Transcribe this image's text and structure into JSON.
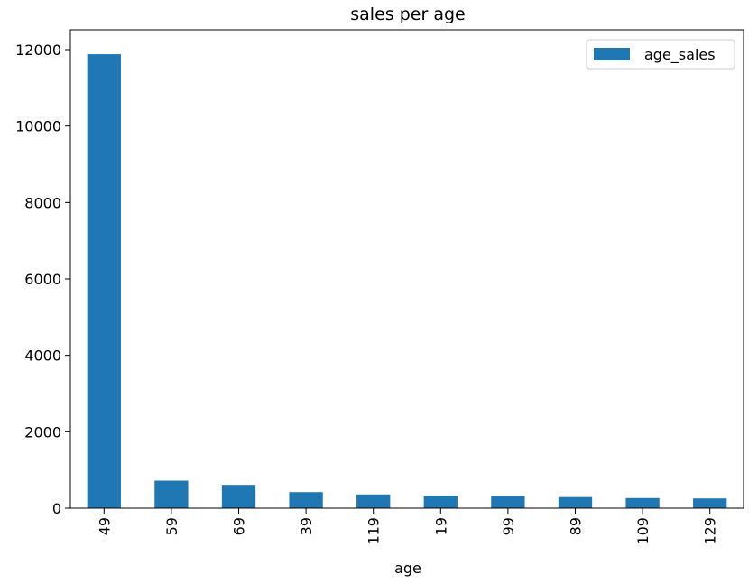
{
  "chart_data": {
    "type": "bar",
    "title": "sales per age",
    "xlabel": "age",
    "ylabel": "",
    "categories": [
      "49",
      "59",
      "69",
      "39",
      "119",
      "19",
      "99",
      "89",
      "109",
      "129"
    ],
    "series": [
      {
        "name": "age_sales",
        "values": [
          11880,
          720,
          610,
          420,
          360,
          330,
          320,
          290,
          265,
          255
        ]
      }
    ],
    "ylim": [
      0,
      12520
    ],
    "yticks": [
      0,
      2000,
      4000,
      6000,
      8000,
      10000,
      12000
    ],
    "grid": false,
    "legend": "top-right",
    "colors": {
      "bar": "#1f77b4",
      "axes": "#000000",
      "background": "#ffffff"
    }
  }
}
